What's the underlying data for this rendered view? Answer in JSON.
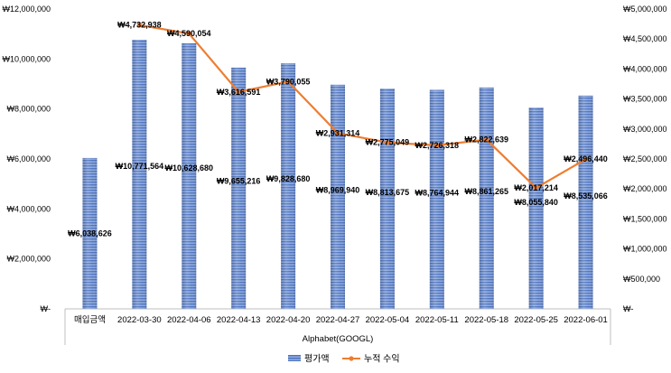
{
  "chart_data": {
    "type": "bar+line",
    "categories": [
      "매입금액",
      "2022-03-30",
      "2022-04-06",
      "2022-04-13",
      "2022-04-20",
      "2022-04-27",
      "2022-05-04",
      "2022-05-11",
      "2022-05-18",
      "2022-05-25",
      "2022-06-01"
    ],
    "xlabel": "Alphabet(GOOGL)",
    "bar_series": {
      "name": "평가액",
      "axis": "left",
      "color": "#5b7fc7",
      "values": [
        6038626,
        10771564,
        10628680,
        9655216,
        9828680,
        8969940,
        8813675,
        8764944,
        8861265,
        8055840,
        8535066
      ],
      "labels": [
        "₩6,038,626",
        "₩10,771,564",
        "₩10,628,680",
        "₩9,655,216",
        "₩9,828,680",
        "₩8,969,940",
        "₩8,813,675",
        "₩8,764,944",
        "₩8,861,265",
        "₩8,055,840",
        "₩8,535,066"
      ]
    },
    "line_series": {
      "name": "누적 수익",
      "axis": "right",
      "color": "#ed7d31",
      "x_start_index": 1,
      "values": [
        4732938,
        4590054,
        3616591,
        3790055,
        2931314,
        2775049,
        2726318,
        2822639,
        2017214,
        2496440
      ],
      "labels": [
        "₩4,732,938",
        "₩4,590,054",
        "₩3,616,591",
        "₩3,790,055",
        "₩2,931,314",
        "₩2,775,049",
        "₩2,726,318",
        "₩2,822,639",
        "₩2,017,214",
        "₩2,496,440"
      ]
    },
    "left_axis": {
      "ylim": [
        0,
        12000000
      ],
      "ticks": [
        0,
        2000000,
        4000000,
        6000000,
        8000000,
        10000000,
        12000000
      ],
      "tick_labels": [
        "₩-",
        "₩2,000,000",
        "₩4,000,000",
        "₩6,000,000",
        "₩8,000,000",
        "₩10,000,000",
        "₩12,000,000"
      ]
    },
    "right_axis": {
      "ylim": [
        0,
        5000000
      ],
      "ticks": [
        0,
        500000,
        1000000,
        1500000,
        2000000,
        2500000,
        3000000,
        3500000,
        4000000,
        4500000,
        5000000
      ],
      "tick_labels": [
        "₩-",
        "₩500,000",
        "₩1,000,000",
        "₩1,500,000",
        "₩2,000,000",
        "₩2,500,000",
        "₩3,000,000",
        "₩3,500,000",
        "₩4,000,000",
        "₩4,500,000",
        "₩5,000,000"
      ]
    },
    "legend": {
      "position": "bottom",
      "items": [
        {
          "label": "평가액",
          "kind": "bar",
          "color": "#5b7fc7"
        },
        {
          "label": "누적 수익",
          "kind": "line",
          "color": "#ed7d31"
        }
      ]
    },
    "grid": false
  }
}
